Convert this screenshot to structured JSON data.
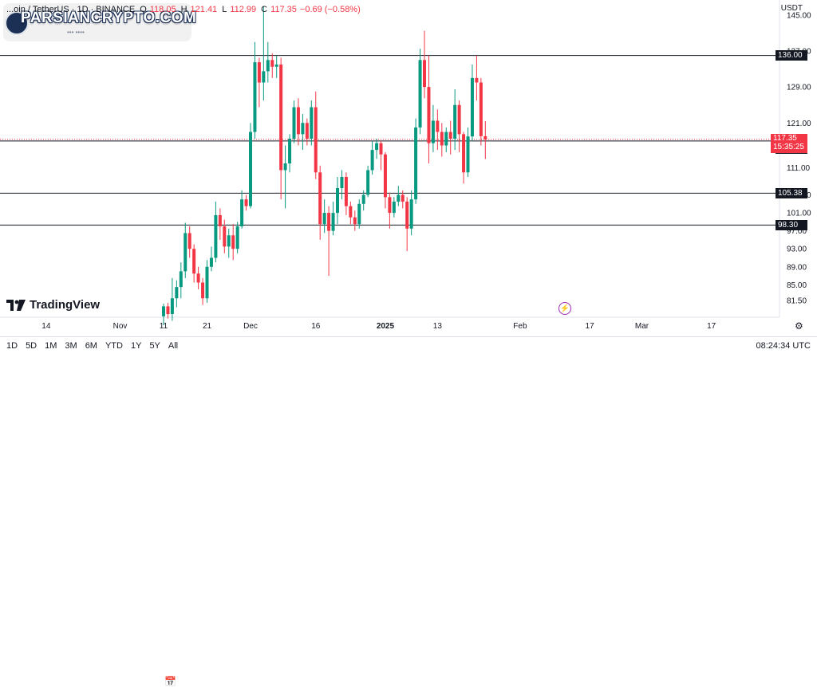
{
  "header": {
    "symbol": "...oin / TetherUS · 1D · BINANCE",
    "open_label": "O",
    "open": "118.05",
    "high_label": "H",
    "high": "121.41",
    "low_label": "L",
    "low": "112.99",
    "close_label": "C",
    "close": "117.35",
    "change": "−0.69 (−0.58%)"
  },
  "currency": "USDT",
  "watermark": {
    "text": "PARSIANCRYPTO.COM",
    "sub": "••• ••••"
  },
  "brand": {
    "name": "TradingView",
    "icon": "tradingview-logo-icon"
  },
  "price_tags": {
    "last_price": "117.35",
    "countdown": "15:35:25",
    "levels": [
      "136.00",
      "117.00",
      "105.38",
      "98.30"
    ]
  },
  "toolbar": {
    "timeframes": [
      "1D",
      "5D",
      "1M",
      "3M",
      "6M",
      "YTD",
      "1Y",
      "5Y",
      "All"
    ],
    "clock": "08:24:34 UTC"
  },
  "colors": {
    "up": "#089981",
    "down": "#f23645",
    "line": "#131722"
  },
  "chart_data": {
    "type": "candlestick",
    "title": "",
    "xlabel": "",
    "ylabel": "",
    "ylim": [
      78.5,
      148
    ],
    "y_ticks": [
      81.5,
      85.0,
      89.0,
      93.0,
      97.0,
      101.0,
      105.0,
      111.0,
      121.0,
      129.0,
      137.0,
      145.0
    ],
    "x_ticks": [
      {
        "label": "14",
        "idx": -27
      },
      {
        "label": "Nov",
        "idx": -10
      },
      {
        "label": "11",
        "idx": 0
      },
      {
        "label": "21",
        "idx": 10
      },
      {
        "label": "Dec",
        "idx": 20
      },
      {
        "label": "16",
        "idx": 35
      },
      {
        "label": "2025",
        "idx": 51
      },
      {
        "label": "13",
        "idx": 63
      },
      {
        "label": "Feb",
        "idx": 82
      },
      {
        "label": "17",
        "idx": 98
      },
      {
        "label": "Mar",
        "idx": 110
      },
      {
        "label": "17",
        "idx": 126
      }
    ],
    "horizontal_levels": [
      136.0,
      117.0,
      105.38,
      98.3
    ],
    "last_price": 117.35,
    "candles": [
      [
        78.0,
        80.2,
        76.0,
        80.8
      ],
      [
        80.2,
        78.5,
        77.5,
        81.0
      ],
      [
        78.5,
        82.0,
        77.0,
        86.5
      ],
      [
        82.0,
        84.5,
        80.0,
        86.0
      ],
      [
        84.5,
        88.0,
        82.0,
        90.0
      ],
      [
        88.0,
        96.5,
        86.5,
        98.8
      ],
      [
        96.5,
        93.0,
        91.0,
        98.0
      ],
      [
        93.0,
        87.5,
        85.5,
        94.0
      ],
      [
        87.5,
        85.5,
        84.0,
        89.0
      ],
      [
        85.5,
        82.0,
        80.5,
        86.5
      ],
      [
        82.0,
        89.0,
        81.0,
        90.5
      ],
      [
        89.0,
        91.0,
        88.0,
        93.5
      ],
      [
        91.0,
        100.5,
        90.0,
        103.5
      ],
      [
        100.5,
        98.0,
        95.0,
        102.0
      ],
      [
        98.0,
        93.5,
        92.0,
        99.5
      ],
      [
        93.5,
        96.0,
        91.0,
        97.5
      ],
      [
        96.0,
        93.0,
        90.5,
        98.5
      ],
      [
        93.0,
        98.0,
        92.0,
        99.0
      ],
      [
        98.0,
        104.0,
        97.5,
        106.0
      ],
      [
        104.0,
        102.5,
        101.5,
        105.0
      ],
      [
        102.5,
        119.0,
        102.0,
        121.0
      ],
      [
        119.0,
        134.5,
        117.5,
        139.0
      ],
      [
        134.5,
        130.0,
        124.5,
        135.5
      ],
      [
        130.0,
        132.5,
        126.0,
        147.0
      ],
      [
        132.5,
        135.0,
        130.0,
        139.0
      ],
      [
        135.0,
        133.5,
        131.0,
        136.5
      ],
      [
        133.5,
        134.0,
        131.0,
        136.0
      ],
      [
        134.0,
        110.5,
        104.0,
        135.5
      ],
      [
        110.5,
        112.0,
        102.0,
        116.0
      ],
      [
        112.0,
        117.5,
        110.0,
        118.5
      ],
      [
        117.5,
        124.5,
        116.5,
        126.0
      ],
      [
        124.5,
        118.5,
        116.0,
        126.5
      ],
      [
        118.5,
        121.0,
        115.0,
        123.0
      ],
      [
        121.0,
        117.5,
        116.0,
        122.0
      ],
      [
        117.5,
        124.5,
        116.0,
        126.0
      ],
      [
        124.5,
        110.0,
        108.5,
        128.0
      ],
      [
        110.0,
        98.5,
        95.0,
        111.5
      ],
      [
        98.5,
        101.0,
        96.5,
        104.0
      ],
      [
        101.0,
        97.0,
        87.0,
        102.5
      ],
      [
        97.0,
        101.0,
        96.0,
        103.5
      ],
      [
        101.0,
        106.5,
        98.5,
        109.0
      ],
      [
        106.5,
        109.0,
        104.0,
        110.5
      ],
      [
        109.0,
        102.5,
        100.5,
        110.0
      ],
      [
        102.5,
        100.0,
        98.5,
        103.5
      ],
      [
        100.0,
        98.5,
        97.0,
        101.5
      ],
      [
        98.5,
        103.0,
        97.5,
        104.0
      ],
      [
        103.0,
        105.0,
        101.5,
        106.0
      ],
      [
        105.0,
        110.5,
        104.5,
        111.5
      ],
      [
        110.5,
        115.0,
        109.5,
        117.0
      ],
      [
        115.0,
        116.5,
        113.0,
        117.5
      ],
      [
        116.5,
        114.0,
        110.5,
        117.0
      ],
      [
        114.0,
        104.5,
        102.0,
        114.5
      ],
      [
        104.5,
        101.0,
        97.5,
        105.5
      ],
      [
        101.0,
        103.5,
        100.0,
        104.5
      ],
      [
        103.5,
        105.0,
        102.5,
        107.0
      ],
      [
        105.0,
        103.5,
        102.0,
        106.0
      ],
      [
        103.5,
        97.5,
        92.5,
        104.5
      ],
      [
        97.5,
        104.0,
        96.0,
        106.0
      ],
      [
        104.0,
        120.0,
        103.0,
        122.0
      ],
      [
        120.0,
        135.0,
        118.5,
        137.5
      ],
      [
        135.0,
        129.0,
        126.5,
        141.5
      ],
      [
        129.0,
        116.5,
        112.0,
        136.0
      ],
      [
        116.5,
        121.5,
        114.5,
        125.0
      ],
      [
        121.5,
        119.0,
        115.0,
        124.0
      ],
      [
        119.0,
        116.0,
        113.5,
        121.0
      ],
      [
        116.0,
        119.0,
        114.5,
        120.0
      ],
      [
        119.0,
        117.5,
        114.0,
        121.5
      ],
      [
        117.5,
        125.0,
        115.0,
        128.5
      ],
      [
        125.0,
        118.5,
        114.5,
        126.0
      ],
      [
        118.5,
        110.0,
        107.5,
        119.0
      ],
      [
        110.0,
        118.0,
        109.0,
        120.0
      ],
      [
        118.0,
        131.0,
        117.0,
        134.0
      ],
      [
        131.0,
        130.0,
        126.0,
        136.0
      ],
      [
        130.0,
        118.05,
        116.0,
        131.0
      ],
      [
        118.05,
        117.35,
        112.99,
        121.41
      ]
    ]
  }
}
